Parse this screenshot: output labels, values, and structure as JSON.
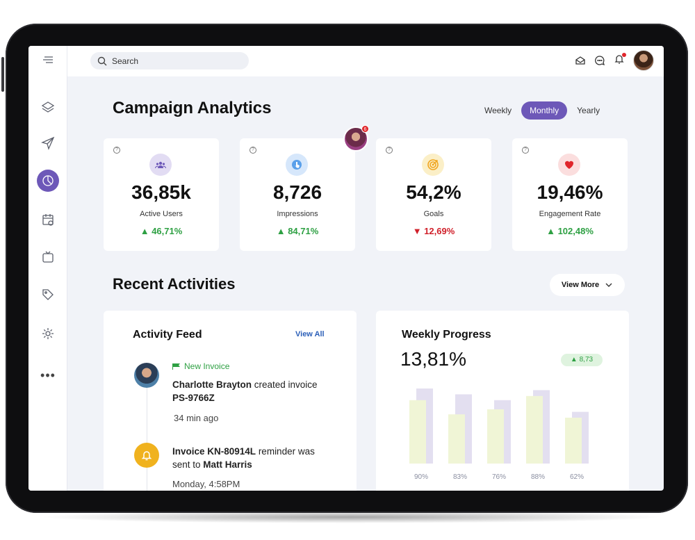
{
  "search": {
    "placeholder": "Search"
  },
  "header": {
    "title": "Campaign Analytics",
    "periods": [
      "Weekly",
      "Monthly",
      "Yearly"
    ],
    "active_period": "Monthly"
  },
  "stats": [
    {
      "value": "36,85k",
      "label": "Active Users",
      "delta": "46,71%",
      "trend": "up",
      "icon": "users-icon",
      "icon_bg": "#e2dcf3"
    },
    {
      "value": "8,726",
      "label": "Impressions",
      "delta": "84,71%",
      "trend": "up",
      "icon": "tap-icon",
      "icon_bg": "#d6e7fb"
    },
    {
      "value": "54,2%",
      "label": "Goals",
      "delta": "12,69%",
      "trend": "down",
      "icon": "target-icon",
      "icon_bg": "#fbefc7"
    },
    {
      "value": "19,46%",
      "label": "Engagement Rate",
      "delta": "102,48%",
      "trend": "up",
      "icon": "heart-icon",
      "icon_bg": "#fbdede"
    }
  ],
  "notification_count": "6",
  "activities": {
    "title": "Recent Activities",
    "view_more": "View More",
    "feed": {
      "title": "Activity Feed",
      "view_all": "View All",
      "item1": {
        "tag": "New Invoice",
        "actor": "Charlotte Brayton",
        "action": " created invoice ",
        "invoice": "PS-9766Z",
        "time": "34 min ago"
      },
      "item2": {
        "invoice": "Invoice KN-80914L",
        "action": " reminder was sent to ",
        "recipient": "Matt Harris",
        "time": "Monday, 4:58PM"
      }
    },
    "weekly": {
      "title": "Weekly Progress",
      "value": "13,81%",
      "badge": "8,73"
    }
  },
  "chart_data": {
    "type": "bar",
    "categories": [
      "90%",
      "83%",
      "76%",
      "88%",
      "62%"
    ],
    "series": [
      {
        "values": [
          90,
          83,
          76,
          88,
          62
        ]
      },
      {
        "values": [
          76,
          59,
          65,
          81,
          55
        ]
      }
    ],
    "ylim": [
      0,
      100
    ]
  }
}
